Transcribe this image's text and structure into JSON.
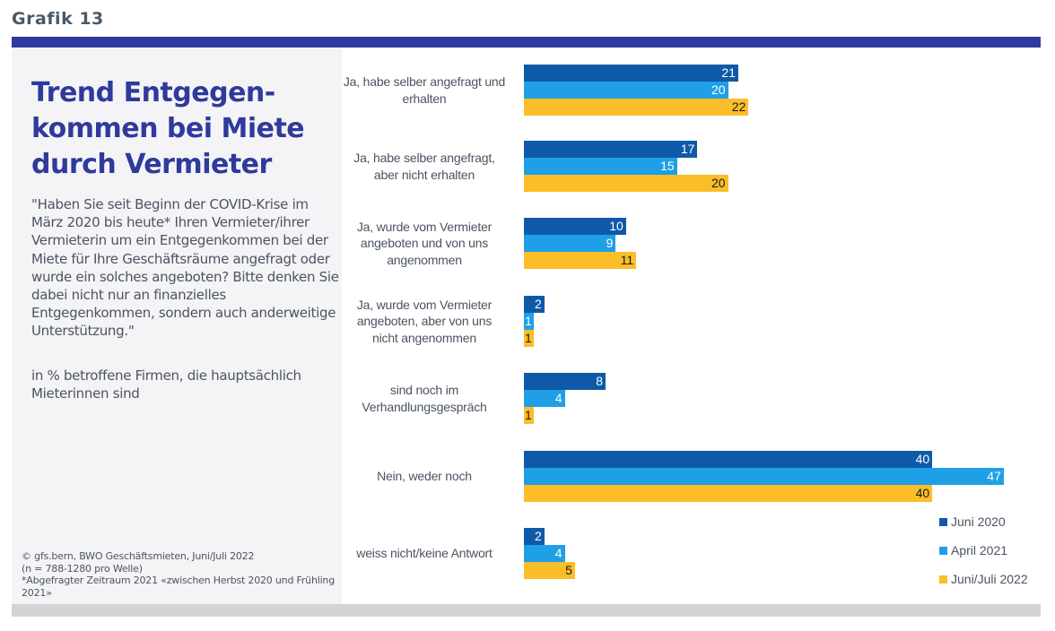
{
  "header": {
    "grafik_label": "Grafik 13"
  },
  "sidebar": {
    "title": "Trend Entgegen-kommen bei Miete durch Vermieter",
    "title_lines": [
      "Trend Entgegen-",
      "kommen bei Miete",
      "durch Vermieter"
    ],
    "question": "\"Haben Sie seit Beginn der COVID-Krise im März 2020 bis heute* Ihren Vermieter/ihrer Vermieterin um ein Entgegenkommen bei der Miete für Ihre Geschäftsräume angefragt oder wurde ein solches angeboten? Bitte denken Sie dabei nicht nur an finanzielles Entgegenkommen, sondern auch anderweitige Unterstützung.\"",
    "unit_note": "in % betroffene Firmen, die hauptsächlich Mieterinnen sind",
    "source_lines": [
      "©  gfs.bern, BWO Geschäftsmieten, Juni/Juli 2022",
      "(n = 788-1280 pro Welle)",
      "*Abgefragter Zeitraum 2021 «zwischen Herbst 2020 und Frühling 2021»"
    ]
  },
  "colors": {
    "brand_blue": "#2e3a9c",
    "juni_2020": "#0f5aa8",
    "april_2021": "#1fa0e6",
    "juni_juli_2022": "#fbbd28",
    "label_light": "#ffffff",
    "label_dark": "#1a1a1a"
  },
  "chart_data": {
    "type": "bar",
    "orientation": "horizontal",
    "title": "Trend Entgegenkommen bei Miete durch Vermieter",
    "xlabel": "",
    "ylabel": "in % betroffene Firmen, die hauptsächlich Mieterinnen sind",
    "xlim": [
      0,
      50
    ],
    "grid": false,
    "legend_position": "bottom-right",
    "categories": [
      "Ja, habe selber angefragt und erhalten",
      "Ja, habe selber angefragt, aber nicht erhalten",
      "Ja, wurde vom Vermieter angeboten und von uns angenommen",
      "Ja, wurde vom Vermieter angeboten, aber von uns nicht angenommen",
      "sind noch im Verhandlungsgespräch",
      "Nein, weder noch",
      "weiss nicht/keine Antwort"
    ],
    "category_lines": [
      [
        "Ja, habe selber angefragt und",
        "erhalten"
      ],
      [
        "Ja, habe selber angefragt,",
        "aber nicht erhalten"
      ],
      [
        "Ja, wurde vom Vermieter",
        "angeboten und von uns",
        "angenommen"
      ],
      [
        "Ja, wurde vom Vermieter",
        "angeboten, aber von uns",
        "nicht angenommen"
      ],
      [
        "sind noch im",
        "Verhandlungsgespräch"
      ],
      [
        "Nein, weder noch"
      ],
      [
        "weiss nicht/keine Antwort"
      ]
    ],
    "series": [
      {
        "name": "Juni 2020",
        "color": "#0f5aa8",
        "values": [
          21,
          17,
          10,
          2,
          8,
          40,
          2
        ]
      },
      {
        "name": "April 2021",
        "color": "#1fa0e6",
        "values": [
          20,
          15,
          9,
          1,
          4,
          47,
          4
        ]
      },
      {
        "name": "Juni/Juli 2022",
        "color": "#fbbd28",
        "values": [
          22,
          20,
          11,
          1,
          1,
          40,
          5
        ]
      }
    ]
  }
}
